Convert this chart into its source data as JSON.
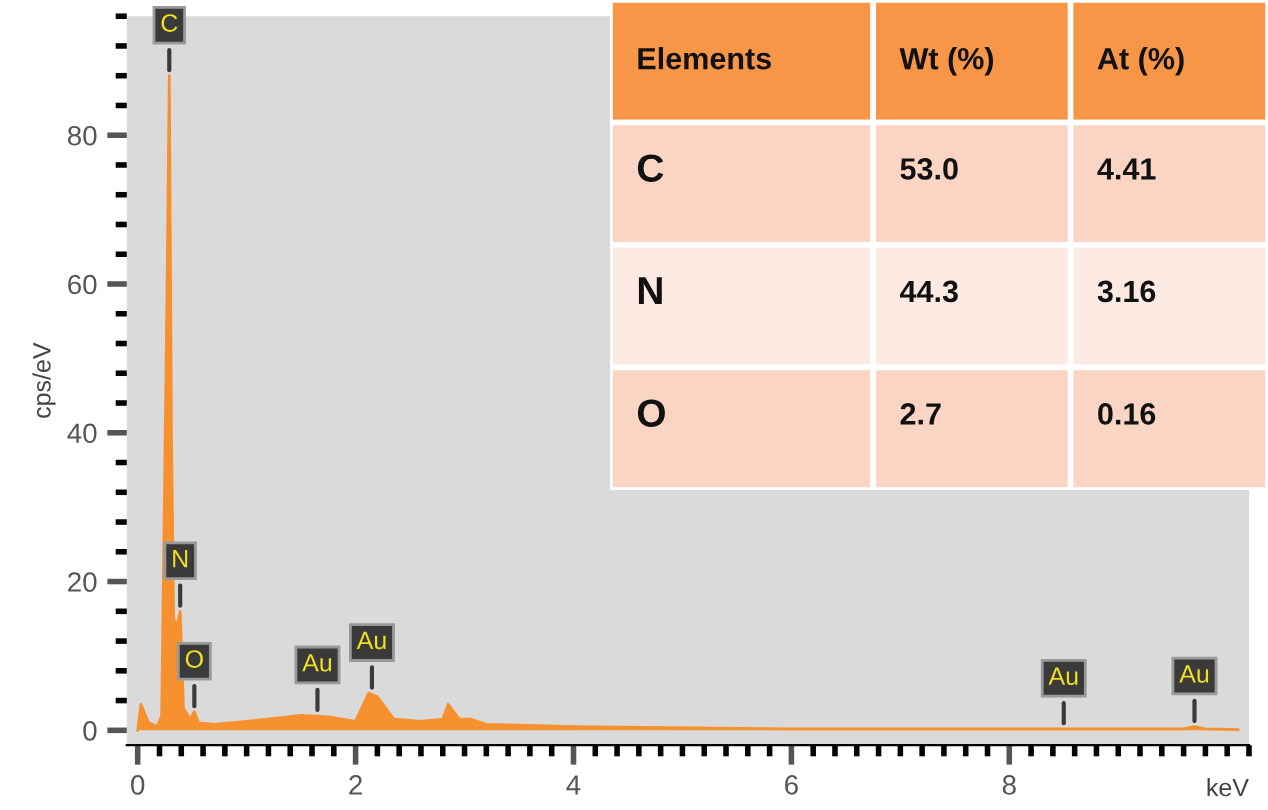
{
  "chart_data": [
    {
      "type": "area",
      "xlabel": "keV",
      "ylabel": "cps/eV",
      "color": "#f7902f",
      "x": [
        0.0,
        0.03,
        0.1,
        0.18,
        0.22,
        0.27,
        0.29,
        0.31,
        0.33,
        0.36,
        0.39,
        0.42,
        0.48,
        0.52,
        0.56,
        0.7,
        1.0,
        1.5,
        1.65,
        1.75,
        2.0,
        2.12,
        2.2,
        2.35,
        2.6,
        2.8,
        2.85,
        2.95,
        3.05,
        3.2,
        4.0,
        6.0,
        8.5,
        9.6,
        9.7,
        9.8,
        10.1
      ],
      "values": [
        0,
        3.5,
        1,
        0.5,
        2,
        60,
        88,
        40,
        15,
        14,
        16,
        3,
        1.5,
        2.5,
        1,
        0.8,
        1.2,
        2,
        1.9,
        1.8,
        1.2,
        5,
        4.5,
        1.5,
        1.2,
        1.5,
        3.5,
        1.5,
        1.5,
        0.8,
        0.5,
        0.2,
        0.2,
        0.2,
        0.5,
        0.2,
        0.1
      ],
      "xlim": [
        -0.1,
        10.2
      ],
      "ylim": [
        -2,
        96
      ],
      "xticks": [
        0,
        2,
        4,
        6,
        8
      ],
      "yticks": [
        0,
        20,
        40,
        60,
        80
      ],
      "annotations": [
        {
          "text": "C",
          "x": 0.29,
          "y": 88
        },
        {
          "text": "N",
          "x": 0.39,
          "y": 16
        },
        {
          "text": "O",
          "x": 0.52,
          "y": 2.5
        },
        {
          "text": "Au",
          "x": 1.65,
          "y": 2
        },
        {
          "text": "Au",
          "x": 2.15,
          "y": 5
        },
        {
          "text": "Au",
          "x": 8.5,
          "y": 0.2
        },
        {
          "text": "Au",
          "x": 9.7,
          "y": 0.5
        }
      ]
    },
    {
      "type": "other",
      "xlabel": "Elements",
      "categories": [
        "C",
        "N",
        "O"
      ],
      "series": [
        {
          "name": "Wt (%)",
          "colors": [
            "#fbd5c4",
            "#fdeae3",
            "#fbd5c4"
          ],
          "values": [
            53.0,
            44.3,
            2.7
          ],
          "value_labels": [
            "53.0",
            "44.3",
            "2.7"
          ]
        },
        {
          "name": "At (%)",
          "colors": [
            "#fbd5c4",
            "#fdeae3",
            "#fbd5c4"
          ],
          "values": [
            4.41,
            3.16,
            0.16
          ],
          "value_labels": [
            "4.41",
            "3.16",
            "0.16"
          ]
        }
      ]
    }
  ]
}
